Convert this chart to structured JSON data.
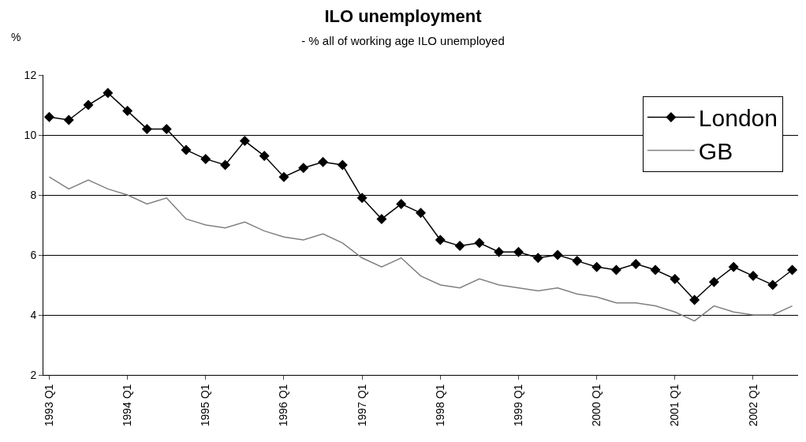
{
  "chart_data": {
    "type": "line",
    "title": "ILO unemployment",
    "subtitle": "- % all of working age ILO unemployed",
    "ylabel": "%",
    "categories": [
      "1993 Q1",
      null,
      null,
      null,
      "1994 Q1",
      null,
      null,
      null,
      "1995 Q1",
      null,
      null,
      null,
      "1996 Q1",
      null,
      null,
      null,
      "1997 Q1",
      null,
      null,
      null,
      "1998 Q1",
      null,
      null,
      null,
      "1999 Q1",
      null,
      null,
      null,
      "2000 Q1",
      null,
      null,
      null,
      "2001 Q1",
      null,
      null,
      null,
      "2002 Q1",
      null,
      null
    ],
    "series": [
      {
        "name": "London",
        "color": "#000000",
        "marker": "diamond",
        "values": [
          10.6,
          10.5,
          11.0,
          11.4,
          10.8,
          10.2,
          10.2,
          9.5,
          9.2,
          9.0,
          9.8,
          9.3,
          8.6,
          8.9,
          9.1,
          9.0,
          7.9,
          7.2,
          7.7,
          7.4,
          6.5,
          6.3,
          6.4,
          6.1,
          6.1,
          5.9,
          6.0,
          5.8,
          5.6,
          5.5,
          5.7,
          5.5,
          5.2,
          4.5,
          5.1,
          5.6,
          5.3,
          5.0,
          5.5
        ]
      },
      {
        "name": "GB",
        "color": "#808080",
        "marker": "none",
        "values": [
          8.6,
          8.2,
          8.5,
          8.2,
          8.0,
          7.7,
          7.9,
          7.2,
          7.0,
          6.9,
          7.1,
          6.8,
          6.6,
          6.5,
          6.7,
          6.4,
          5.9,
          5.6,
          5.9,
          5.3,
          5.0,
          4.9,
          5.2,
          5.0,
          4.9,
          4.8,
          4.9,
          4.7,
          4.6,
          4.4,
          4.4,
          4.3,
          4.1,
          3.8,
          4.3,
          4.1,
          4.0,
          4.0,
          4.3
        ]
      }
    ],
    "ylim": [
      2,
      12
    ],
    "yticks": [
      2,
      4,
      6,
      8,
      10,
      12
    ],
    "grid": "y",
    "legend": "top right",
    "line_style": "solid"
  }
}
